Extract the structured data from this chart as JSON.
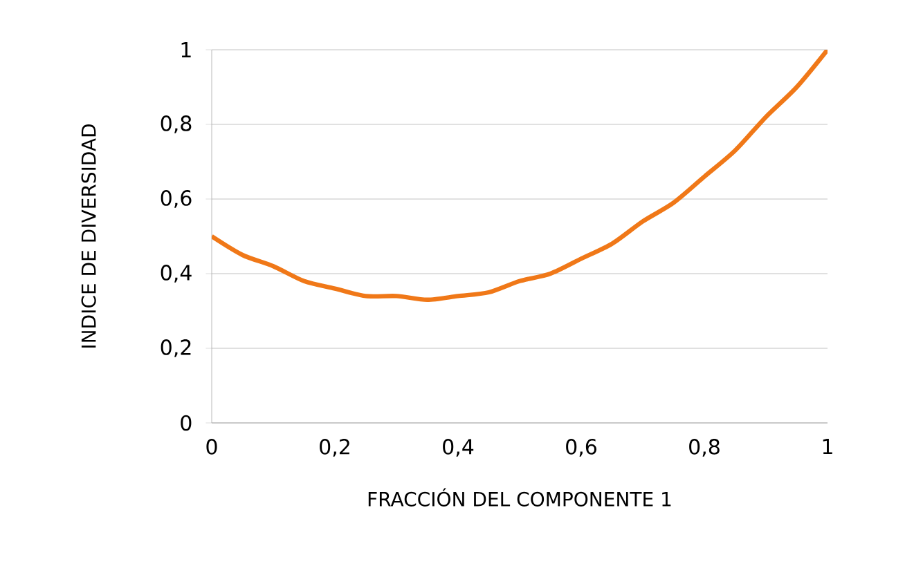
{
  "chart_data": {
    "type": "line",
    "xlabel": "FRACCIÓN DEL COMPONENTE 1",
    "ylabel": "INDICE DE DIVERSIDAD",
    "x": [
      0,
      0.05,
      0.1,
      0.15,
      0.2,
      0.25,
      0.3,
      0.35,
      0.4,
      0.45,
      0.5,
      0.55,
      0.6,
      0.65,
      0.7,
      0.75,
      0.8,
      0.85,
      0.9,
      0.95,
      1
    ],
    "series": [
      {
        "color": "#f07818",
        "values": [
          0.5,
          0.45,
          0.42,
          0.38,
          0.36,
          0.34,
          0.34,
          0.33,
          0.34,
          0.35,
          0.38,
          0.4,
          0.44,
          0.48,
          0.54,
          0.59,
          0.66,
          0.73,
          0.82,
          0.9,
          1
        ]
      }
    ],
    "xlim": [
      0,
      1
    ],
    "ylim": [
      0,
      1
    ],
    "xticks": [
      0,
      {
        "value": 0.2,
        "label": "0,2"
      },
      {
        "value": 0.4,
        "label": "0,4"
      },
      {
        "value": 0.6,
        "label": "0,6"
      },
      {
        "value": 0.8,
        "label": "0,8"
      },
      1
    ],
    "yticks": [
      0,
      {
        "value": 0.2,
        "label": "0,2"
      },
      {
        "value": 0.4,
        "label": "0,4"
      },
      {
        "value": 0.6,
        "label": "0,6"
      },
      {
        "value": 0.8,
        "label": "0,8"
      },
      1
    ],
    "grid": "y",
    "marker": "none",
    "line_style": "solid"
  }
}
